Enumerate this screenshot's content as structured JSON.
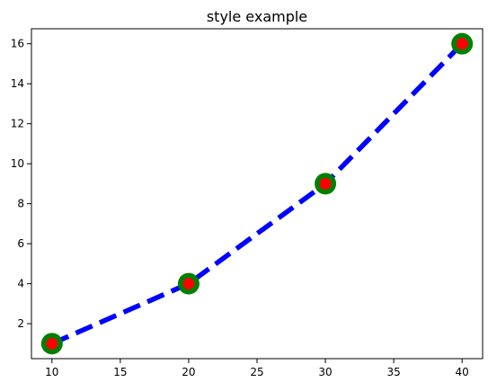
{
  "chart_data": {
    "type": "line",
    "title": "style example",
    "xlabel": "",
    "ylabel": "",
    "x": [
      10,
      20,
      30,
      40
    ],
    "series": [
      {
        "values": [
          1,
          4,
          9,
          16
        ],
        "line_color": "#0000ff",
        "line_style": "dashed",
        "marker": "circle",
        "marker_face_color": "#ff0000",
        "marker_edge_color": "#008000"
      }
    ],
    "xlim": [
      8.5,
      41.5
    ],
    "ylim": [
      0.25,
      16.75
    ],
    "xticks": [
      10,
      15,
      20,
      25,
      30,
      35,
      40
    ],
    "yticks": [
      2,
      4,
      6,
      8,
      10,
      12,
      14,
      16
    ],
    "grid": false,
    "legend": false
  }
}
